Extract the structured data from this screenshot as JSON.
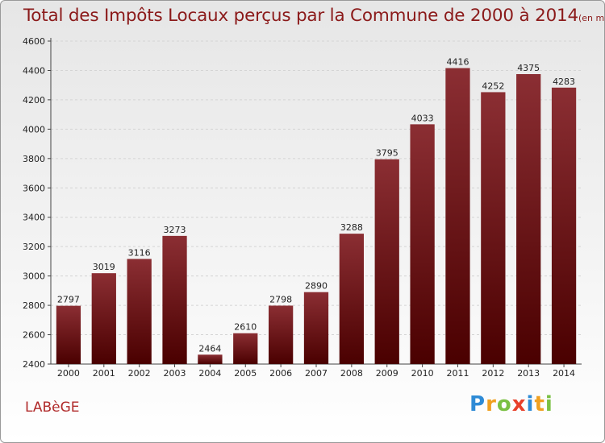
{
  "header": {
    "title": "Total des Impôts Locaux perçus par la Commune de 2000 à 2014",
    "subtitle": "(en milliers d'€)"
  },
  "commune_name": "LABèGE",
  "logo": {
    "letters": [
      "P",
      "r",
      "o",
      "x",
      "i",
      "t",
      "i"
    ],
    "colors": [
      "#2e8bd6",
      "#f0a020",
      "#7ac043",
      "#e8402a",
      "#2e8bd6",
      "#f0a020",
      "#7ac043"
    ]
  },
  "colors": {
    "bar_top": "#8b2e33",
    "bar_bottom": "#4a0000",
    "text": "#8b1a1a"
  },
  "chart_data": {
    "type": "bar",
    "title": "Total des Impôts Locaux perçus par la Commune de 2000 à 2014",
    "categories": [
      "2000",
      "2001",
      "2002",
      "2003",
      "2004",
      "2005",
      "2006",
      "2007",
      "2008",
      "2009",
      "2010",
      "2011",
      "2012",
      "2013",
      "2014"
    ],
    "values": [
      2797,
      3019,
      3116,
      3273,
      2464,
      2610,
      2798,
      2890,
      3288,
      3795,
      4033,
      4416,
      4252,
      4375,
      4283
    ],
    "ylim": [
      2400,
      4600
    ],
    "yticks": [
      2400,
      2600,
      2800,
      3000,
      3200,
      3400,
      3600,
      3800,
      4000,
      4200,
      4400,
      4600
    ],
    "grid": true
  }
}
